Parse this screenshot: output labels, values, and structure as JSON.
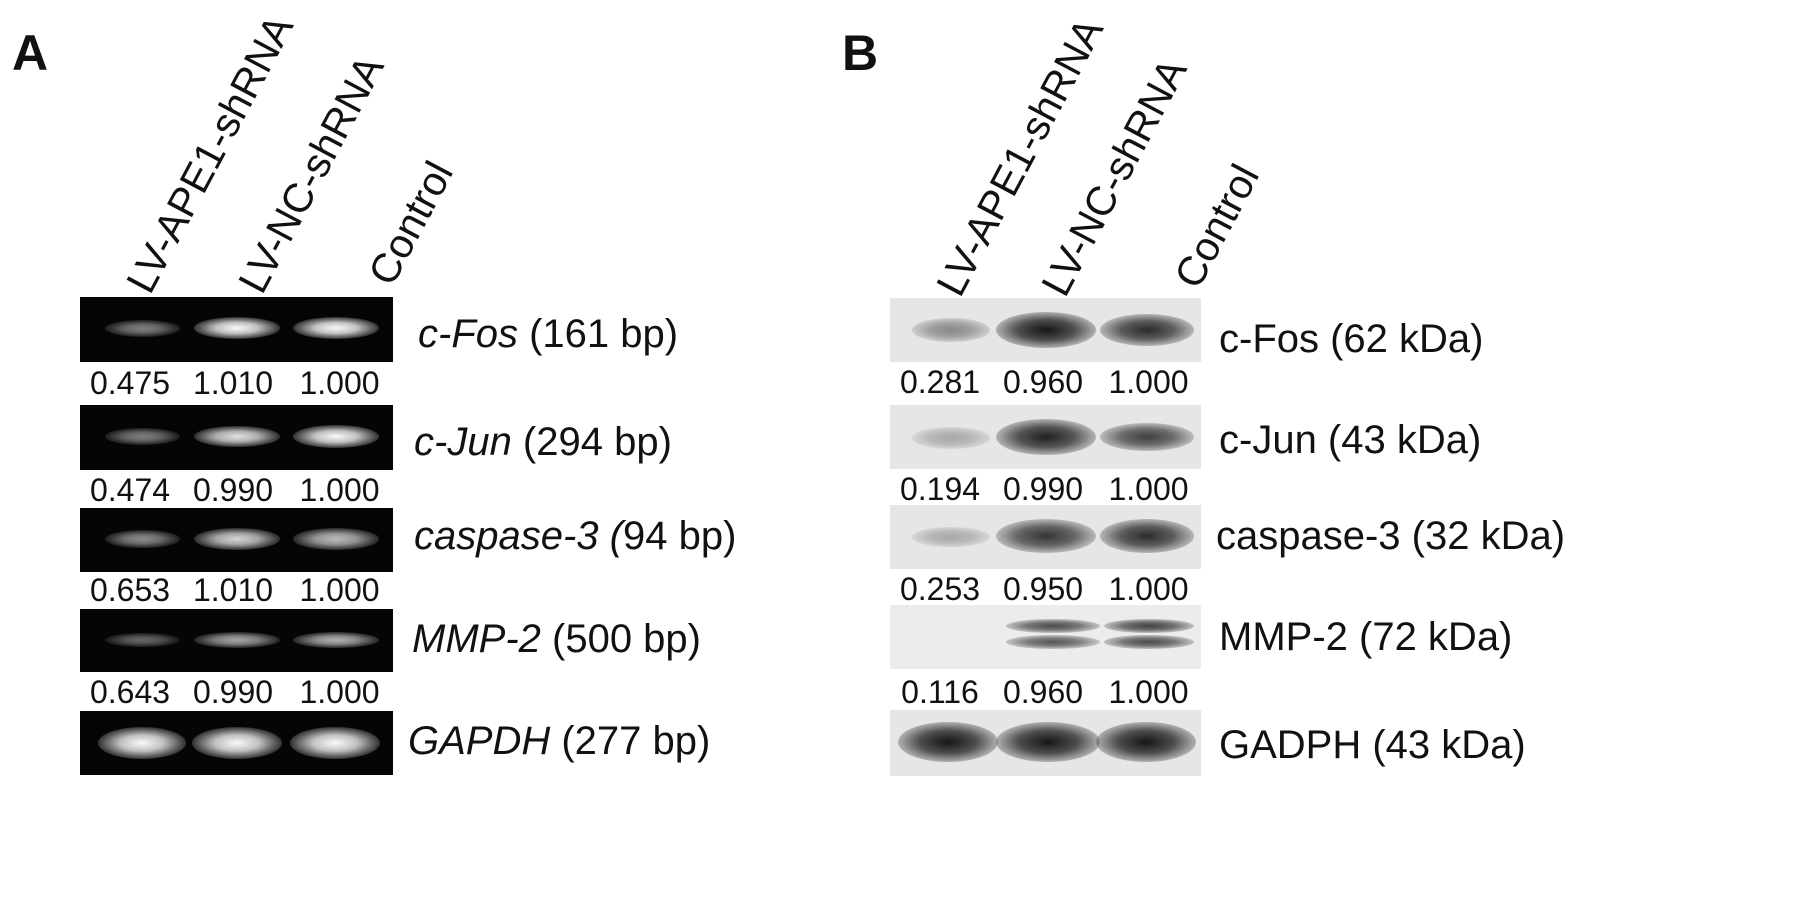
{
  "panel_a": {
    "letter": "A",
    "lanes": [
      "LV-APE1-shRNA",
      "LV-NC-shRNA",
      "Control"
    ],
    "rows": [
      {
        "gene": "c-Fos",
        "size": " (161 bp)",
        "values": [
          "0.475",
          "1.010",
          "1.000"
        ]
      },
      {
        "gene": "c-Jun",
        "size": " (294 bp)",
        "values": [
          "0.474",
          "0.990",
          "1.000"
        ]
      },
      {
        "gene": "caspase-3 (",
        "size": "94 bp)",
        "values": [
          "0.653",
          "1.010",
          "1.000"
        ]
      },
      {
        "gene": "MMP-2",
        "size": " (500 bp)",
        "values": [
          "0.643",
          "0.990",
          "1.000"
        ]
      },
      {
        "gene": "GAPDH",
        "size": " (277 bp)",
        "values": []
      }
    ]
  },
  "panel_b": {
    "letter": "B",
    "lanes": [
      "LV-APE1-shRNA",
      "LV-NC-shRNA",
      "Control"
    ],
    "rows": [
      {
        "label": "c-Fos (62 kDa)",
        "values": [
          "0.281",
          "0.960",
          "1.000"
        ]
      },
      {
        "label": "c-Jun (43 kDa)",
        "values": [
          "0.194",
          "0.990",
          "1.000"
        ]
      },
      {
        "label": "caspase-3 (32 kDa)",
        "values": [
          "0.253",
          "0.950",
          "1.000"
        ]
      },
      {
        "label": "MMP-2 (72 kDa)",
        "values": [
          "0.116",
          "0.960",
          "1.000"
        ]
      },
      {
        "label": "GADPH (43 kDa)",
        "values": []
      }
    ]
  }
}
